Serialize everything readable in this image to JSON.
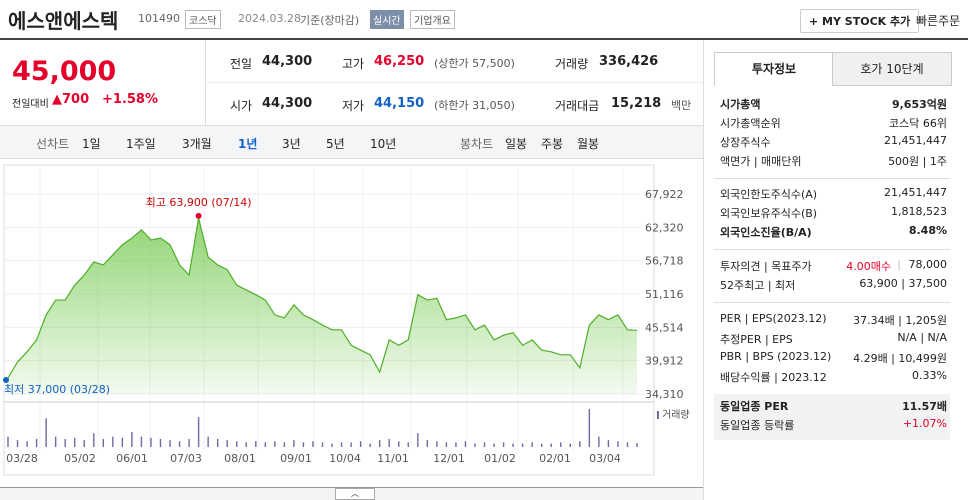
{
  "header": {
    "name": "에스앤에스텍",
    "code": "101490",
    "market": "코스닥",
    "date": "2024.03.28",
    "basis": "기준(장마감)",
    "realtime": "실시간",
    "overview": "기업개요",
    "mystock": "+ MY STOCK 추가",
    "quick_order": "빠른주문"
  },
  "price": {
    "current": "45,000",
    "change_label": "전일대비",
    "change": "700",
    "change_rate": "+1.58%"
  },
  "stats": [
    {
      "label": "전일",
      "value": "44,300"
    },
    {
      "label": "고가",
      "value": "46,250",
      "sub": "(상한가 57,500)",
      "color": "#e4002b"
    },
    {
      "label": "거래량",
      "value": "336,426"
    },
    {
      "label": "시가",
      "value": "44,300"
    },
    {
      "label": "저가",
      "value": "44,150",
      "sub": "(하한가 31,050)",
      "color": "#1261c4"
    },
    {
      "label": "거래대금",
      "value": "15,218",
      "sub": "백만"
    }
  ],
  "tabs": {
    "line_label": "선차트",
    "line": [
      "1일",
      "1주일",
      "3개월",
      "1년",
      "3년",
      "5년",
      "10년"
    ],
    "active": 3,
    "candle_label": "봉차트",
    "candle": [
      "일봉",
      "주봉",
      "월봉"
    ]
  },
  "chart": {
    "type": "area",
    "color": "#6cc644",
    "values": [
      37000,
      39700,
      41400,
      43400,
      47600,
      50100,
      50100,
      52600,
      54300,
      56500,
      56000,
      57700,
      59400,
      60500,
      61900,
      60200,
      60500,
      59400,
      56000,
      54300,
      63900,
      57300,
      56000,
      55200,
      52600,
      51800,
      51000,
      50100,
      47600,
      47100,
      49300,
      47600,
      46800,
      45900,
      45100,
      45100,
      42500,
      41700,
      40900,
      38000,
      43400,
      42500,
      43400,
      51000,
      50100,
      50400,
      46800,
      47100,
      47600,
      45100,
      45900,
      43400,
      44200,
      44600,
      42500,
      43400,
      41700,
      41400,
      40900,
      40900,
      38700,
      45900,
      47600,
      46800,
      47600,
      45100,
      45000
    ],
    "volumes": [
      900000,
      600000,
      500000,
      700000,
      2500000,
      900000,
      700000,
      800000,
      600000,
      1200000,
      700000,
      900000,
      800000,
      1300000,
      900000,
      800000,
      700000,
      600000,
      500000,
      700000,
      2600000,
      900000,
      700000,
      600000,
      500000,
      400000,
      500000,
      400000,
      500000,
      400000,
      600000,
      400000,
      500000,
      400000,
      300000,
      400000,
      400000,
      500000,
      300000,
      600000,
      700000,
      500000,
      400000,
      1200000,
      600000,
      500000,
      400000,
      400000,
      500000,
      300000,
      400000,
      300000,
      400000,
      300000,
      300000,
      400000,
      300000,
      300000,
      400000,
      300000,
      500000,
      3300000,
      900000,
      600000,
      500000,
      400000,
      336426
    ],
    "ylim": [
      34310,
      67922
    ],
    "yticks": [
      {
        "value": 67922,
        "label": "67,922"
      },
      {
        "value": 62320,
        "label": "62,320"
      },
      {
        "value": 56718,
        "label": "56,718"
      },
      {
        "value": 51116,
        "label": "51,116"
      },
      {
        "value": 45514,
        "label": "45,514"
      },
      {
        "value": 39912,
        "label": "39,912"
      },
      {
        "value": 34310,
        "label": "34,310"
      }
    ],
    "x_labels": [
      "03/28",
      "05/02",
      "06/01",
      "07/03",
      "08/01",
      "09/01",
      "10/04",
      "11/01",
      "12/01",
      "01/02",
      "02/01",
      "03/04"
    ],
    "high_label": "최고 63,900 (07/14)",
    "low_label": "최저 37,000 (03/28)",
    "volume_legend": "거래량"
  },
  "panel": {
    "tabs": [
      "투자정보",
      "호가 10단계"
    ],
    "groups": [
      [
        {
          "label": "시가총액",
          "value": "9,653억원",
          "bold": true
        },
        {
          "label": "시가총액순위",
          "value": "코스닥 66위"
        },
        {
          "label": "상장주식수",
          "value": "21,451,447"
        },
        {
          "label": "액면가 | 매매단위",
          "value": "500원 | 1주"
        }
      ],
      [
        {
          "label": "외국인한도주식수(A)",
          "value": "21,451,447"
        },
        {
          "label": "외국인보유주식수(B)",
          "value": "1,818,523"
        },
        {
          "label": "외국인소진율(B/A)",
          "value": "8.48%",
          "bold": true
        }
      ],
      [
        {
          "label": "투자의견 | 목표주가",
          "value": "4.00매수",
          "value2": "78,000",
          "color": "#e4002b"
        },
        {
          "label": "52주최고 | 최저",
          "value": "63,900 | 37,500"
        }
      ],
      [
        {
          "label": "PER | EPS(2023.12)",
          "value": "37.34배 | 1,205원"
        },
        {
          "label": "추정PER | EPS",
          "value": "N/A | N/A"
        },
        {
          "label": "PBR | BPS (2023.12)",
          "value": "4.29배 | 10,499원"
        },
        {
          "label": "배당수익률 | 2023.12",
          "value": "0.33%"
        }
      ],
      [
        {
          "label": "동일업종 PER",
          "value": "11.57배",
          "bold": true
        },
        {
          "label": "동일업종 등락률",
          "value": "+1.07%",
          "color": "#e4002b"
        }
      ]
    ]
  }
}
